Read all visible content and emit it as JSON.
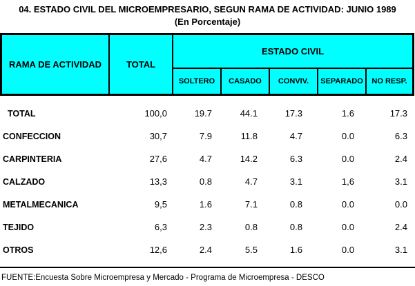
{
  "colors": {
    "header_bg": "#00ffff",
    "border": "#000000",
    "background": "#ffffff",
    "text": "#000000"
  },
  "chart_data": {
    "type": "table",
    "title": "04. ESTADO CIVIL DEL MICROEMPRESARIO, SEGUN RAMA DE ACTIVIDAD: JUNIO 1989",
    "subtitle": "(En Porcentaje)",
    "row_header": "RAMA DE ACTIVIDAD",
    "total_header": "TOTAL",
    "group_header": "ESTADO CIVIL",
    "sub_headers": [
      "SOLTERO",
      "CASADO",
      "CONVIV.",
      "SEPARADO",
      "NO RESP."
    ],
    "rows": [
      {
        "label": "TOTAL",
        "cells": [
          "100,0",
          "19.7",
          "44.1",
          "17.3",
          "1.6",
          "17.3"
        ]
      },
      {
        "label": "CONFECCION",
        "cells": [
          "30,7",
          "7.9",
          "11.8",
          "4.7",
          "0.0",
          "6.3"
        ]
      },
      {
        "label": "CARPINTERIA",
        "cells": [
          "27,6",
          "4.7",
          "14.2",
          "6.3",
          "0.0",
          "2.4"
        ]
      },
      {
        "label": "CALZADO",
        "cells": [
          "13,3",
          "0.8",
          "4.7",
          "3.1",
          "1,6",
          "3.1"
        ]
      },
      {
        "label": "METALMECANICA",
        "cells": [
          "9,5",
          "1.6",
          "7.1",
          "0.8",
          "0.0",
          "0.0"
        ]
      },
      {
        "label": "TEJIDO",
        "cells": [
          "6,3",
          "2.3",
          "0.8",
          "0.8",
          "0.0",
          "2.4"
        ]
      },
      {
        "label": "OTROS",
        "cells": [
          "12,6",
          "2.4",
          "5.5",
          "1.6",
          "0.0",
          "3.1"
        ]
      }
    ],
    "source": "FUENTE:Encuesta Sobre Microempresa y Mercado - Programa de Microempresa - DESCO"
  }
}
